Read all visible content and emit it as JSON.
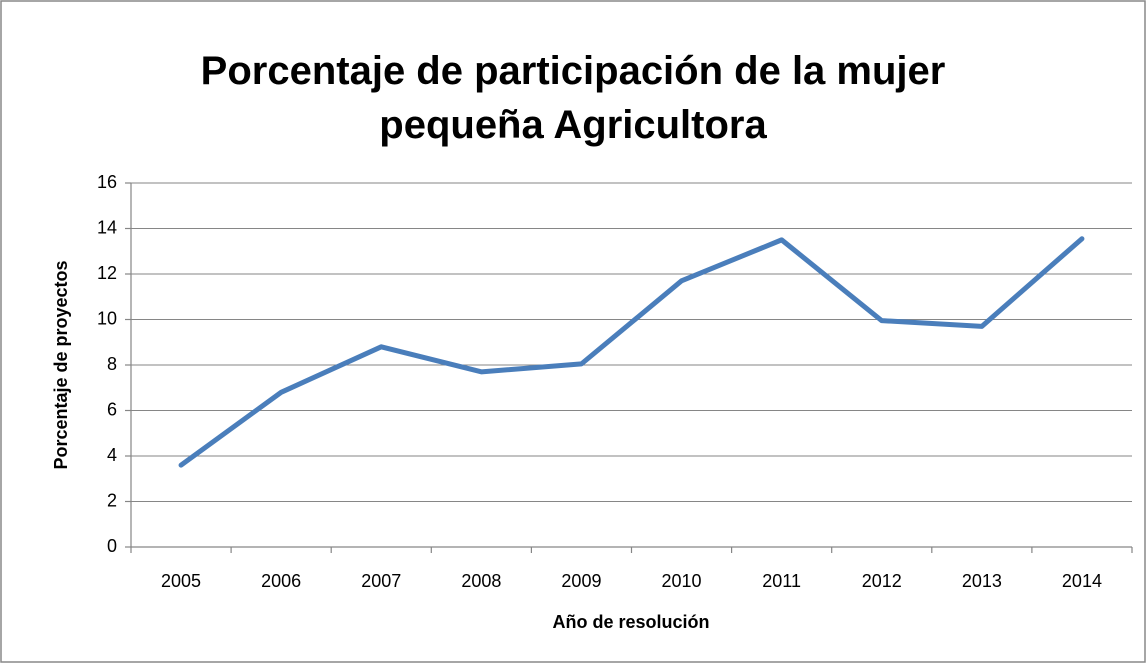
{
  "chart_data": {
    "type": "line",
    "title": "Porcentaje de participación de la mujer pequeña Agricultora",
    "x_label": "Año de resolución",
    "y_label": "Porcentaje de proyectos",
    "categories": [
      "2005",
      "2006",
      "2007",
      "2008",
      "2009",
      "2010",
      "2011",
      "2012",
      "2013",
      "2014"
    ],
    "series": [
      {
        "color": "#4a7ebb",
        "values": [
          3.6,
          6.8,
          8.8,
          7.7,
          8.05,
          11.7,
          13.5,
          9.95,
          9.7,
          13.55
        ]
      }
    ],
    "ylim": [
      0,
      16
    ],
    "yticks": [
      0,
      2,
      4,
      6,
      8,
      10,
      12,
      14,
      16
    ],
    "grid": true
  }
}
